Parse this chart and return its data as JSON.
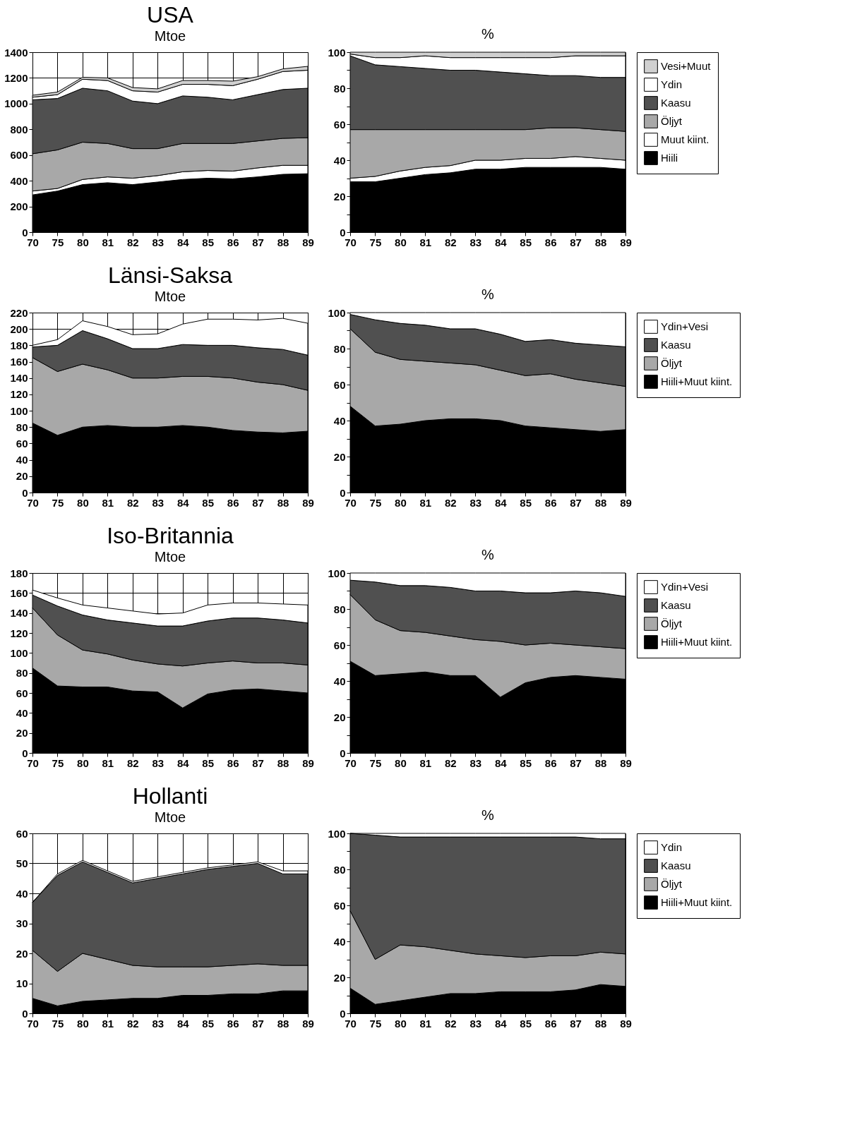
{
  "chart_data": [
    {
      "type": "area",
      "title": "USA",
      "subtitle": "Mtoe",
      "stacked": true,
      "grid": true,
      "legend": false,
      "categories": [
        "70",
        "75",
        "80",
        "81",
        "82",
        "83",
        "84",
        "85",
        "86",
        "87",
        "88",
        "89"
      ],
      "ylim": [
        0,
        1400
      ],
      "yticks": [
        0,
        200,
        400,
        600,
        800,
        1000,
        1200,
        1400
      ],
      "series": [
        {
          "color": "#000000",
          "values": [
            290,
            320,
            370,
            385,
            370,
            390,
            410,
            420,
            415,
            430,
            450,
            455
          ]
        },
        {
          "color": "#ffffff",
          "values": [
            30,
            20,
            40,
            45,
            50,
            50,
            60,
            60,
            60,
            70,
            70,
            65
          ]
        },
        {
          "color": "#a8a8a8",
          "values": [
            290,
            300,
            290,
            260,
            230,
            210,
            220,
            210,
            215,
            210,
            210,
            215
          ]
        },
        {
          "color": "#505050",
          "values": [
            420,
            400,
            420,
            410,
            370,
            350,
            370,
            360,
            340,
            360,
            380,
            385
          ]
        },
        {
          "color": "#ffffff",
          "values": [
            20,
            30,
            70,
            80,
            80,
            90,
            90,
            100,
            110,
            120,
            140,
            140
          ]
        },
        {
          "color": "#d0d0d0",
          "values": [
            15,
            20,
            15,
            20,
            25,
            25,
            30,
            30,
            35,
            20,
            20,
            30
          ]
        }
      ]
    },
    {
      "type": "area",
      "subtitle": "%",
      "stacked": true,
      "legend": "right",
      "categories": [
        "70",
        "75",
        "80",
        "81",
        "82",
        "83",
        "84",
        "85",
        "86",
        "87",
        "88",
        "89"
      ],
      "ylim": [
        0,
        100
      ],
      "yticks": [
        0,
        {
          "value": 10,
          "label": null
        },
        20,
        {
          "value": 30,
          "label": null
        },
        40,
        {
          "value": 50,
          "label": null
        },
        60,
        {
          "value": 70,
          "label": null
        },
        80,
        {
          "value": 90,
          "label": null
        },
        100
      ],
      "series": [
        {
          "name": "Hiili",
          "color": "#000000",
          "values": [
            28,
            28,
            30,
            32,
            33,
            35,
            35,
            36,
            36,
            36,
            36,
            35
          ]
        },
        {
          "name": "Muut kiint.",
          "color": "#ffffff",
          "values": [
            2,
            3,
            4,
            4,
            4,
            5,
            5,
            5,
            5,
            6,
            5,
            5
          ]
        },
        {
          "name": "Öljyt",
          "color": "#a8a8a8",
          "values": [
            27,
            26,
            23,
            21,
            20,
            17,
            17,
            16,
            17,
            16,
            16,
            16
          ]
        },
        {
          "name": "Kaasu",
          "color": "#505050",
          "values": [
            41,
            36,
            35,
            34,
            33,
            33,
            32,
            31,
            29,
            29,
            29,
            30
          ]
        },
        {
          "name": "Ydin",
          "color": "#ffffff",
          "values": [
            1,
            4,
            5,
            7,
            7,
            7,
            8,
            9,
            10,
            11,
            12,
            12
          ]
        },
        {
          "name": "Vesi+Muut",
          "color": "#d0d0d0",
          "values": [
            1,
            3,
            3,
            2,
            3,
            3,
            3,
            3,
            3,
            2,
            2,
            2
          ]
        }
      ]
    },
    {
      "type": "area",
      "title": "Länsi-Saksa",
      "subtitle": "Mtoe",
      "stacked": true,
      "grid": true,
      "legend": false,
      "categories": [
        "70",
        "75",
        "80",
        "81",
        "82",
        "83",
        "84",
        "85",
        "86",
        "87",
        "88",
        "89"
      ],
      "ylim": [
        0,
        220
      ],
      "yticks": [
        0,
        20,
        40,
        60,
        80,
        100,
        120,
        140,
        160,
        180,
        200,
        220
      ],
      "series": [
        {
          "color": "#000000",
          "values": [
            85,
            70,
            80,
            82,
            80,
            80,
            82,
            80,
            76,
            74,
            73,
            75
          ]
        },
        {
          "color": "#a8a8a8",
          "values": [
            80,
            78,
            77,
            68,
            60,
            60,
            60,
            62,
            64,
            61,
            59,
            50
          ]
        },
        {
          "color": "#505050",
          "values": [
            13,
            32,
            41,
            38,
            36,
            36,
            39,
            38,
            40,
            42,
            43,
            43
          ]
        },
        {
          "color": "#ffffff",
          "values": [
            2,
            7,
            12,
            15,
            17,
            18,
            25,
            32,
            32,
            34,
            38,
            39
          ]
        }
      ]
    },
    {
      "type": "area",
      "subtitle": "%",
      "stacked": true,
      "legend": "right",
      "categories": [
        "70",
        "75",
        "80",
        "81",
        "82",
        "83",
        "84",
        "85",
        "86",
        "87",
        "88",
        "89"
      ],
      "ylim": [
        0,
        100
      ],
      "yticks": [
        0,
        {
          "value": 10,
          "label": null
        },
        20,
        {
          "value": 30,
          "label": null
        },
        40,
        {
          "value": 50,
          "label": null
        },
        60,
        {
          "value": 70,
          "label": null
        },
        80,
        {
          "value": 90,
          "label": null
        },
        100
      ],
      "series": [
        {
          "name": "Hiili+Muut kiint.",
          "color": "#000000",
          "values": [
            48,
            37,
            38,
            40,
            41,
            41,
            40,
            37,
            36,
            35,
            34,
            35
          ]
        },
        {
          "name": "Öljyt",
          "color": "#a8a8a8",
          "values": [
            43,
            41,
            36,
            33,
            31,
            30,
            28,
            28,
            30,
            28,
            27,
            24
          ]
        },
        {
          "name": "Kaasu",
          "color": "#505050",
          "values": [
            8,
            18,
            20,
            20,
            19,
            20,
            20,
            19,
            19,
            20,
            21,
            22
          ]
        },
        {
          "name": "Ydin+Vesi",
          "color": "#ffffff",
          "values": [
            1,
            4,
            6,
            7,
            9,
            9,
            12,
            16,
            15,
            17,
            18,
            19
          ]
        }
      ]
    },
    {
      "type": "area",
      "title": "Iso-Britannia",
      "subtitle": "Mtoe",
      "stacked": true,
      "grid": true,
      "legend": false,
      "categories": [
        "70",
        "75",
        "80",
        "81",
        "82",
        "83",
        "84",
        "85",
        "86",
        "87",
        "88",
        "89"
      ],
      "ylim": [
        0,
        180
      ],
      "yticks": [
        0,
        20,
        40,
        60,
        80,
        100,
        120,
        140,
        160,
        180
      ],
      "series": [
        {
          "color": "#000000",
          "values": [
            85,
            67,
            66,
            66,
            62,
            61,
            45,
            59,
            63,
            64,
            62,
            60
          ]
        },
        {
          "color": "#a8a8a8",
          "values": [
            60,
            51,
            37,
            33,
            31,
            28,
            42,
            31,
            29,
            26,
            28,
            28
          ]
        },
        {
          "color": "#505050",
          "values": [
            13,
            29,
            35,
            34,
            37,
            38,
            40,
            42,
            43,
            45,
            43,
            42
          ]
        },
        {
          "color": "#ffffff",
          "values": [
            5,
            8,
            10,
            12,
            12,
            12,
            13,
            16,
            15,
            15,
            16,
            18
          ]
        }
      ]
    },
    {
      "type": "area",
      "subtitle": "%",
      "stacked": true,
      "legend": "right",
      "categories": [
        "70",
        "75",
        "80",
        "81",
        "82",
        "83",
        "84",
        "85",
        "86",
        "87",
        "88",
        "89"
      ],
      "ylim": [
        0,
        100
      ],
      "yticks": [
        0,
        {
          "value": 10,
          "label": null
        },
        20,
        {
          "value": 30,
          "label": null
        },
        40,
        {
          "value": 50,
          "label": null
        },
        60,
        {
          "value": 70,
          "label": null
        },
        80,
        {
          "value": 90,
          "label": null
        },
        100
      ],
      "series": [
        {
          "name": "Hiili+Muut kiint.",
          "color": "#000000",
          "values": [
            51,
            43,
            44,
            45,
            43,
            43,
            31,
            39,
            42,
            43,
            42,
            41
          ]
        },
        {
          "name": "Öljyt",
          "color": "#a8a8a8",
          "values": [
            37,
            31,
            24,
            22,
            22,
            20,
            31,
            21,
            19,
            17,
            17,
            17
          ]
        },
        {
          "name": "Kaasu",
          "color": "#505050",
          "values": [
            8,
            21,
            25,
            26,
            27,
            27,
            28,
            29,
            28,
            30,
            30,
            29
          ]
        },
        {
          "name": "Ydin+Vesi",
          "color": "#ffffff",
          "values": [
            4,
            5,
            7,
            7,
            8,
            10,
            10,
            11,
            11,
            10,
            11,
            13
          ]
        }
      ]
    },
    {
      "type": "area",
      "title": "Hollanti",
      "subtitle": "Mtoe",
      "stacked": true,
      "grid": true,
      "legend": false,
      "categories": [
        "70",
        "75",
        "80",
        "81",
        "82",
        "83",
        "84",
        "85",
        "86",
        "87",
        "88",
        "89"
      ],
      "ylim": [
        0,
        60
      ],
      "yticks": [
        0,
        10,
        20,
        30,
        40,
        50,
        60
      ],
      "series": [
        {
          "color": "#000000",
          "values": [
            5,
            2.5,
            4,
            4.5,
            5,
            5,
            6,
            6,
            6.5,
            6.5,
            7.5,
            7.5
          ]
        },
        {
          "color": "#a8a8a8",
          "values": [
            16,
            11.5,
            16,
            13.5,
            11,
            10.5,
            9.5,
            9.5,
            9.5,
            10,
            8.5,
            8.5
          ]
        },
        {
          "color": "#505050",
          "values": [
            16,
            32,
            30.5,
            29,
            27.5,
            29.5,
            31,
            32.5,
            33,
            33.5,
            30.5,
            30.5
          ]
        },
        {
          "color": "#ffffff",
          "values": [
            0,
            0.5,
            0.5,
            0.5,
            0.5,
            0.5,
            0.5,
            0.5,
            0.5,
            0.5,
            1,
            1
          ]
        }
      ]
    },
    {
      "type": "area",
      "subtitle": "%",
      "stacked": true,
      "legend": "right",
      "categories": [
        "70",
        "75",
        "80",
        "81",
        "82",
        "83",
        "84",
        "85",
        "86",
        "87",
        "88",
        "89"
      ],
      "ylim": [
        0,
        100
      ],
      "yticks": [
        0,
        {
          "value": 10,
          "label": null
        },
        20,
        {
          "value": 30,
          "label": null
        },
        40,
        {
          "value": 50,
          "label": null
        },
        60,
        {
          "value": 70,
          "label": null
        },
        80,
        {
          "value": 90,
          "label": null
        },
        100
      ],
      "series": [
        {
          "name": "Hiili+Muut kiint.",
          "color": "#000000",
          "values": [
            14,
            5,
            7,
            9,
            11,
            11,
            12,
            12,
            12,
            13,
            16,
            15
          ]
        },
        {
          "name": "Öljyt",
          "color": "#a8a8a8",
          "values": [
            43,
            25,
            31,
            28,
            24,
            22,
            20,
            19,
            20,
            19,
            18,
            18
          ]
        },
        {
          "name": "Kaasu",
          "color": "#505050",
          "values": [
            43,
            69,
            60,
            61,
            63,
            65,
            66,
            67,
            66,
            66,
            63,
            64
          ]
        },
        {
          "name": "Ydin",
          "color": "#ffffff",
          "values": [
            0,
            1,
            2,
            2,
            2,
            2,
            2,
            2,
            2,
            2,
            3,
            3
          ]
        }
      ]
    }
  ]
}
